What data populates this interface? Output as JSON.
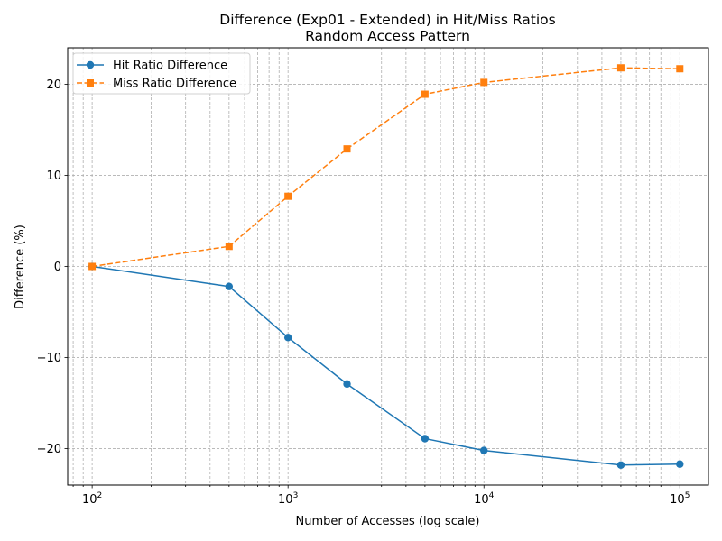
{
  "chart_data": {
    "type": "line",
    "title": "Difference (Exp01 - Extended) in Hit/Miss Ratios",
    "subtitle": "Random Access Pattern",
    "xlabel": "Number of Accesses (log scale)",
    "ylabel": "Difference (%)",
    "xscale": "log",
    "xlim": [
      75,
      140000
    ],
    "ylim": [
      -24,
      24
    ],
    "grid": true,
    "legend_position": "top-left",
    "x": [
      100,
      500,
      1000,
      2000,
      5000,
      10000,
      50000,
      100000
    ],
    "x_ticks": [
      100,
      1000,
      10000,
      100000
    ],
    "x_tick_labels": [
      {
        "base": "10",
        "exp": "2"
      },
      {
        "base": "10",
        "exp": "3"
      },
      {
        "base": "10",
        "exp": "4"
      },
      {
        "base": "10",
        "exp": "5"
      }
    ],
    "y_ticks": [
      -20,
      -10,
      0,
      10,
      20
    ],
    "y_tick_labels": [
      "−20",
      "−10",
      "0",
      "10",
      "20"
    ],
    "series": [
      {
        "name": "Hit Ratio Difference",
        "color": "#1f77b4",
        "line_style": "solid",
        "marker": "circle",
        "values": [
          0,
          -2.2,
          -7.8,
          -12.9,
          -18.9,
          -20.2,
          -21.8,
          -21.7
        ]
      },
      {
        "name": "Miss Ratio Difference",
        "color": "#ff7f0e",
        "line_style": "dashed",
        "marker": "square",
        "values": [
          0,
          2.2,
          7.7,
          12.9,
          18.9,
          20.2,
          21.8,
          21.7
        ]
      }
    ]
  }
}
